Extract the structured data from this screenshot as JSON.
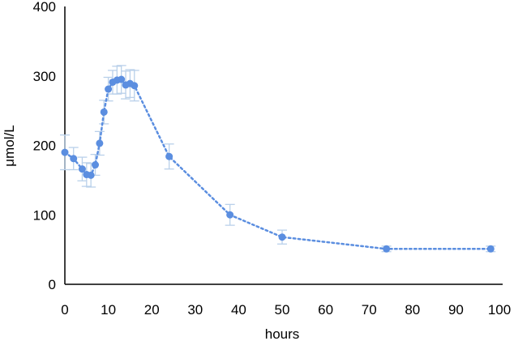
{
  "chart_data": {
    "type": "scatter",
    "xlabel": "hours",
    "ylabel": "μmol/L",
    "xlim": [
      0,
      100
    ],
    "ylim": [
      0,
      400
    ],
    "x_ticks": [
      0,
      10,
      20,
      30,
      40,
      50,
      60,
      70,
      80,
      90,
      100
    ],
    "y_ticks": [
      0,
      100,
      200,
      300,
      400
    ],
    "x_tick_labels": [
      "0",
      "10",
      "20",
      "30",
      "40",
      "50",
      "60",
      "70",
      "80",
      "90",
      "100"
    ],
    "y_tick_labels": [
      "0",
      "100",
      "200",
      "300",
      "400"
    ],
    "grid": false,
    "legend": "none",
    "series": [
      {
        "color": "#5b8ee0",
        "line_style": "dotted",
        "x": [
          0,
          2,
          4,
          5,
          6,
          7,
          8,
          9,
          10,
          11,
          12,
          13,
          14,
          15,
          16,
          24,
          38,
          50,
          74,
          98
        ],
        "y": [
          190,
          181,
          166,
          158,
          157,
          172,
          203,
          248,
          281,
          291,
          294,
          295,
          287,
          289,
          286,
          184,
          100,
          68,
          51,
          51
        ],
        "error": [
          25,
          16,
          17,
          17,
          17,
          15,
          17,
          17,
          17,
          17,
          20,
          20,
          20,
          20,
          22,
          18,
          15,
          10,
          4,
          4
        ]
      }
    ],
    "error_bar_color": "#b9d0ea"
  }
}
